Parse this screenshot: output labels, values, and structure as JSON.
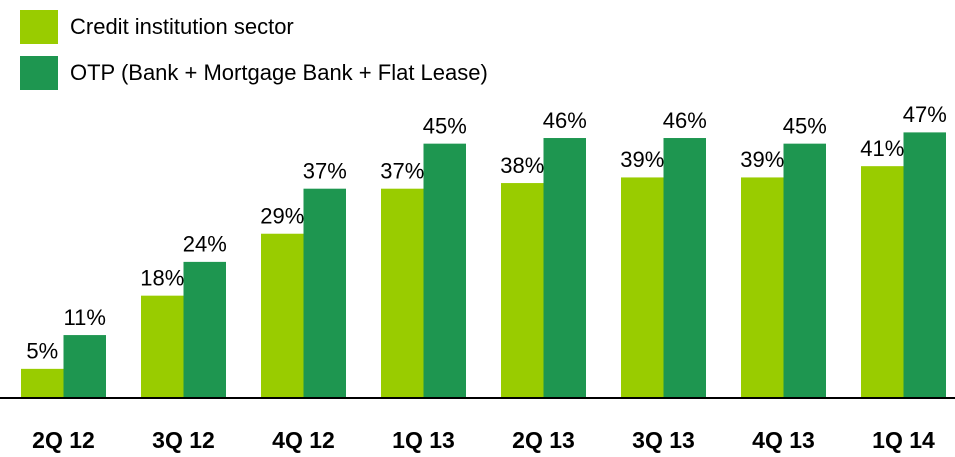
{
  "chart_data": {
    "type": "bar",
    "categories": [
      "2Q 12",
      "3Q 12",
      "4Q 12",
      "1Q 13",
      "2Q 13",
      "3Q 13",
      "4Q 13",
      "1Q 14"
    ],
    "series": [
      {
        "name": "Credit institution sector",
        "color": "#99cc00",
        "values": [
          5,
          18,
          29,
          37,
          38,
          39,
          39,
          41
        ],
        "value_labels": [
          "5%",
          "18%",
          "29%",
          "37%",
          "38%",
          "39%",
          "39%",
          "41%"
        ]
      },
      {
        "name": "OTP (Bank + Mortgage Bank + Flat Lease)",
        "color": "#1e9650",
        "values": [
          11,
          24,
          37,
          45,
          46,
          46,
          45,
          47
        ],
        "value_labels": [
          "11%",
          "24%",
          "37%",
          "45%",
          "46%",
          "46%",
          "45%",
          "47%"
        ]
      }
    ]
  }
}
